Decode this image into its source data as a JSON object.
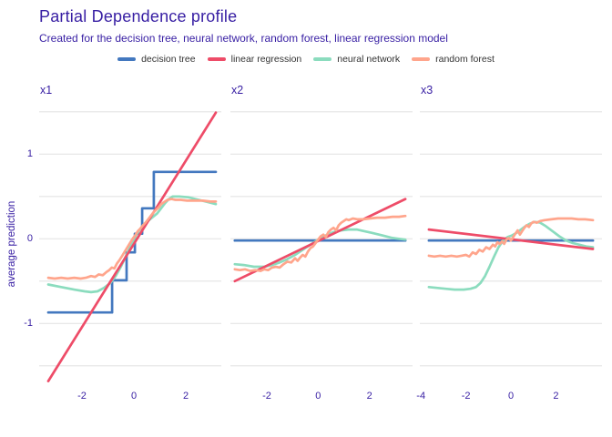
{
  "chart_data": {
    "type": "line",
    "title": "Partial Dependence profile",
    "subtitle": "Created for the decision tree, neural network, random forest, linear regression model",
    "ylabel": "average prediction",
    "ylim": [
      -1.76,
      1.53
    ],
    "yticks": [
      "1",
      "0",
      "-1"
    ],
    "ytick_values": [
      1,
      0,
      -1
    ],
    "gridlines": [
      1.5,
      1,
      0.5,
      0,
      -0.5,
      -1,
      -1.5
    ],
    "grid_color": "#e4e4e4",
    "grid_on": true,
    "legend_position": "top-center",
    "legend": [
      {
        "key": "decision_tree",
        "label": "decision tree",
        "color": "#4378bf"
      },
      {
        "key": "linear_regression",
        "label": "linear regression",
        "color": "#ee4c68"
      },
      {
        "key": "neural_network",
        "label": "neural network",
        "color": "#8bdcbe"
      },
      {
        "key": "random_forest",
        "label": "random forest",
        "color": "#ffa58c"
      }
    ],
    "draw_order": [
      "decision_tree",
      "neural_network",
      "linear_regression",
      "random_forest"
    ],
    "panels": [
      {
        "title": "x1",
        "xlim": [
          -3.65,
          3.37
        ],
        "xticks": [
          -2,
          0,
          2
        ],
        "series": {
          "decision_tree": [
            [
              -3.3,
              -0.87
            ],
            [
              -0.84,
              -0.87
            ],
            [
              -0.84,
              -0.49
            ],
            [
              -0.28,
              -0.49
            ],
            [
              -0.28,
              -0.16
            ],
            [
              0.04,
              -0.16
            ],
            [
              0.04,
              0.06
            ],
            [
              0.32,
              0.06
            ],
            [
              0.32,
              0.36
            ],
            [
              0.77,
              0.36
            ],
            [
              0.77,
              0.79
            ],
            [
              3.16,
              0.79
            ]
          ],
          "linear_regression": [
            [
              -3.3,
              -1.68
            ],
            [
              3.16,
              1.49
            ]
          ],
          "neural_network": [
            [
              -3.3,
              -0.54
            ],
            [
              -2.8,
              -0.57
            ],
            [
              -2.3,
              -0.6
            ],
            [
              -1.9,
              -0.62
            ],
            [
              -1.65,
              -0.63
            ],
            [
              -1.4,
              -0.62
            ],
            [
              -1.15,
              -0.58
            ],
            [
              -0.9,
              -0.52
            ],
            [
              -0.7,
              -0.44
            ],
            [
              -0.5,
              -0.33
            ],
            [
              -0.3,
              -0.2
            ],
            [
              -0.1,
              -0.07
            ],
            [
              0.1,
              0.05
            ],
            [
              0.3,
              0.14
            ],
            [
              0.5,
              0.2
            ],
            [
              0.7,
              0.25
            ],
            [
              0.9,
              0.3
            ],
            [
              1.05,
              0.36
            ],
            [
              1.2,
              0.42
            ],
            [
              1.35,
              0.47
            ],
            [
              1.5,
              0.5
            ],
            [
              1.75,
              0.5
            ],
            [
              2.1,
              0.49
            ],
            [
              2.5,
              0.46
            ],
            [
              2.9,
              0.43
            ],
            [
              3.16,
              0.41
            ]
          ],
          "random_forest": [
            [
              -3.3,
              -0.46
            ],
            [
              -3.05,
              -0.47
            ],
            [
              -2.8,
              -0.46
            ],
            [
              -2.55,
              -0.47
            ],
            [
              -2.3,
              -0.46
            ],
            [
              -2.05,
              -0.47
            ],
            [
              -1.85,
              -0.46
            ],
            [
              -1.65,
              -0.44
            ],
            [
              -1.5,
              -0.45
            ],
            [
              -1.35,
              -0.42
            ],
            [
              -1.2,
              -0.43
            ],
            [
              -1.05,
              -0.39
            ],
            [
              -0.95,
              -0.37
            ],
            [
              -0.85,
              -0.34
            ],
            [
              -0.75,
              -0.35
            ],
            [
              -0.65,
              -0.29
            ],
            [
              -0.55,
              -0.25
            ],
            [
              -0.45,
              -0.2
            ],
            [
              -0.35,
              -0.15
            ],
            [
              -0.25,
              -0.1
            ],
            [
              -0.15,
              -0.05
            ],
            [
              -0.05,
              0.0
            ],
            [
              0.05,
              0.04
            ],
            [
              0.15,
              0.09
            ],
            [
              0.25,
              0.12
            ],
            [
              0.35,
              0.16
            ],
            [
              0.45,
              0.19
            ],
            [
              0.55,
              0.23
            ],
            [
              0.65,
              0.27
            ],
            [
              0.75,
              0.31
            ],
            [
              0.85,
              0.34
            ],
            [
              0.95,
              0.37
            ],
            [
              1.05,
              0.41
            ],
            [
              1.15,
              0.43
            ],
            [
              1.3,
              0.46
            ],
            [
              1.45,
              0.47
            ],
            [
              1.6,
              0.46
            ],
            [
              1.8,
              0.46
            ],
            [
              2.05,
              0.45
            ],
            [
              2.35,
              0.45
            ],
            [
              2.65,
              0.45
            ],
            [
              2.95,
              0.44
            ],
            [
              3.16,
              0.44
            ]
          ]
        }
      },
      {
        "title": "x2",
        "xlim": [
          -3.42,
          3.68
        ],
        "xticks": [
          -2,
          0,
          2
        ],
        "series": {
          "decision_tree": [
            [
              -3.25,
              -0.02
            ],
            [
              3.4,
              -0.02
            ]
          ],
          "linear_regression": [
            [
              -3.25,
              -0.5
            ],
            [
              3.4,
              0.47
            ]
          ],
          "neural_network": [
            [
              -3.25,
              -0.3
            ],
            [
              -2.9,
              -0.31
            ],
            [
              -2.5,
              -0.33
            ],
            [
              -2.1,
              -0.33
            ],
            [
              -1.8,
              -0.31
            ],
            [
              -1.5,
              -0.28
            ],
            [
              -1.2,
              -0.24
            ],
            [
              -0.9,
              -0.19
            ],
            [
              -0.6,
              -0.13
            ],
            [
              -0.3,
              -0.07
            ],
            [
              0.0,
              -0.01
            ],
            [
              0.3,
              0.04
            ],
            [
              0.6,
              0.08
            ],
            [
              0.9,
              0.1
            ],
            [
              1.2,
              0.11
            ],
            [
              1.5,
              0.11
            ],
            [
              1.8,
              0.09
            ],
            [
              2.1,
              0.07
            ],
            [
              2.5,
              0.04
            ],
            [
              2.9,
              0.01
            ],
            [
              3.15,
              0.0
            ],
            [
              3.4,
              -0.01
            ]
          ],
          "random_forest": [
            [
              -3.25,
              -0.36
            ],
            [
              -3.05,
              -0.37
            ],
            [
              -2.85,
              -0.36
            ],
            [
              -2.65,
              -0.38
            ],
            [
              -2.45,
              -0.37
            ],
            [
              -2.25,
              -0.38
            ],
            [
              -2.1,
              -0.36
            ],
            [
              -1.95,
              -0.37
            ],
            [
              -1.8,
              -0.34
            ],
            [
              -1.65,
              -0.33
            ],
            [
              -1.5,
              -0.34
            ],
            [
              -1.35,
              -0.3
            ],
            [
              -1.2,
              -0.27
            ],
            [
              -1.05,
              -0.28
            ],
            [
              -0.9,
              -0.23
            ],
            [
              -0.8,
              -0.26
            ],
            [
              -0.7,
              -0.22
            ],
            [
              -0.6,
              -0.19
            ],
            [
              -0.5,
              -0.21
            ],
            [
              -0.4,
              -0.15
            ],
            [
              -0.3,
              -0.11
            ],
            [
              -0.2,
              -0.09
            ],
            [
              -0.1,
              -0.05
            ],
            [
              0.0,
              -0.01
            ],
            [
              0.1,
              0.03
            ],
            [
              0.2,
              0.05
            ],
            [
              0.3,
              0.02
            ],
            [
              0.4,
              0.08
            ],
            [
              0.5,
              0.11
            ],
            [
              0.6,
              0.13
            ],
            [
              0.7,
              0.1
            ],
            [
              0.8,
              0.16
            ],
            [
              0.9,
              0.19
            ],
            [
              1.0,
              0.21
            ],
            [
              1.1,
              0.23
            ],
            [
              1.2,
              0.22
            ],
            [
              1.35,
              0.24
            ],
            [
              1.55,
              0.23
            ],
            [
              1.75,
              0.23
            ],
            [
              2.0,
              0.24
            ],
            [
              2.3,
              0.25
            ],
            [
              2.6,
              0.25
            ],
            [
              2.9,
              0.26
            ],
            [
              3.15,
              0.26
            ],
            [
              3.4,
              0.27
            ]
          ]
        }
      },
      {
        "title": "x3",
        "xlim": [
          -4.05,
          4.05
        ],
        "xticks": [
          -4,
          -2,
          0,
          2
        ],
        "series": {
          "decision_tree": [
            [
              -3.65,
              -0.02
            ],
            [
              3.65,
              -0.02
            ]
          ],
          "linear_regression": [
            [
              -3.65,
              0.11
            ],
            [
              3.65,
              -0.12
            ]
          ],
          "neural_network": [
            [
              -3.65,
              -0.57
            ],
            [
              -3.3,
              -0.58
            ],
            [
              -2.9,
              -0.59
            ],
            [
              -2.5,
              -0.6
            ],
            [
              -2.1,
              -0.6
            ],
            [
              -1.8,
              -0.59
            ],
            [
              -1.55,
              -0.57
            ],
            [
              -1.35,
              -0.52
            ],
            [
              -1.15,
              -0.44
            ],
            [
              -0.95,
              -0.33
            ],
            [
              -0.75,
              -0.21
            ],
            [
              -0.55,
              -0.1
            ],
            [
              -0.35,
              -0.02
            ],
            [
              -0.15,
              0.02
            ],
            [
              0.05,
              0.04
            ],
            [
              0.25,
              0.07
            ],
            [
              0.45,
              0.11
            ],
            [
              0.65,
              0.15
            ],
            [
              0.85,
              0.18
            ],
            [
              1.05,
              0.2
            ],
            [
              1.3,
              0.19
            ],
            [
              1.55,
              0.15
            ],
            [
              1.85,
              0.09
            ],
            [
              2.15,
              0.03
            ],
            [
              2.45,
              -0.02
            ],
            [
              2.75,
              -0.05
            ],
            [
              3.05,
              -0.07
            ],
            [
              3.35,
              -0.09
            ],
            [
              3.65,
              -0.1
            ]
          ],
          "random_forest": [
            [
              -3.65,
              -0.2
            ],
            [
              -3.4,
              -0.21
            ],
            [
              -3.15,
              -0.2
            ],
            [
              -2.9,
              -0.21
            ],
            [
              -2.65,
              -0.2
            ],
            [
              -2.4,
              -0.21
            ],
            [
              -2.2,
              -0.2
            ],
            [
              -2.0,
              -0.19
            ],
            [
              -1.85,
              -0.21
            ],
            [
              -1.7,
              -0.16
            ],
            [
              -1.55,
              -0.18
            ],
            [
              -1.4,
              -0.13
            ],
            [
              -1.25,
              -0.15
            ],
            [
              -1.1,
              -0.1
            ],
            [
              -0.95,
              -0.12
            ],
            [
              -0.8,
              -0.07
            ],
            [
              -0.7,
              -0.09
            ],
            [
              -0.6,
              -0.04
            ],
            [
              -0.5,
              -0.06
            ],
            [
              -0.4,
              -0.03
            ],
            [
              -0.3,
              -0.06
            ],
            [
              -0.2,
              -0.01
            ],
            [
              -0.1,
              0.01
            ],
            [
              0.0,
              -0.02
            ],
            [
              0.1,
              0.02
            ],
            [
              0.2,
              0.06
            ],
            [
              0.3,
              0.1
            ],
            [
              0.4,
              0.05
            ],
            [
              0.5,
              0.09
            ],
            [
              0.6,
              0.13
            ],
            [
              0.7,
              0.16
            ],
            [
              0.8,
              0.14
            ],
            [
              0.9,
              0.18
            ],
            [
              1.0,
              0.2
            ],
            [
              1.15,
              0.19
            ],
            [
              1.3,
              0.21
            ],
            [
              1.5,
              0.22
            ],
            [
              1.8,
              0.23
            ],
            [
              2.1,
              0.24
            ],
            [
              2.4,
              0.24
            ],
            [
              2.7,
              0.24
            ],
            [
              3.0,
              0.23
            ],
            [
              3.3,
              0.23
            ],
            [
              3.65,
              0.22
            ]
          ]
        }
      }
    ]
  },
  "theme": {
    "title_color": "#371ea3",
    "axis_text_color": "#371ea3",
    "legend_text_color": "#333333",
    "background": "#ffffff"
  }
}
